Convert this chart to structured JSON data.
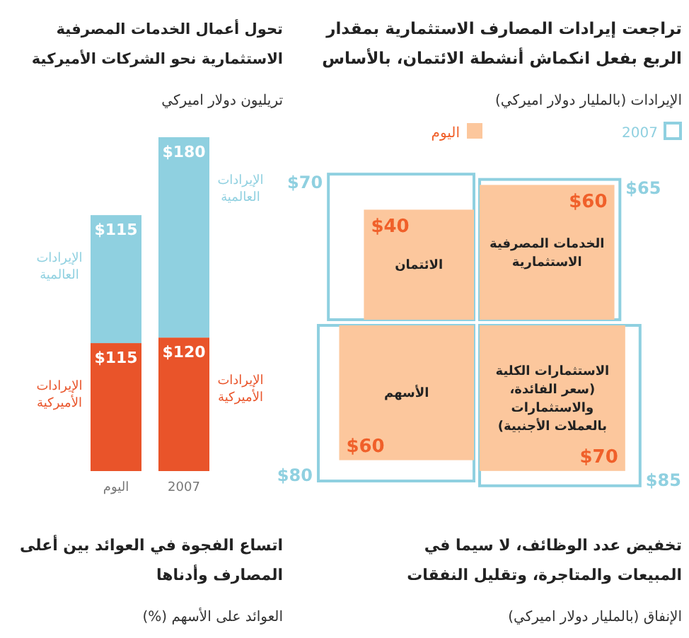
{
  "chart_data": [
    {
      "type": "other",
      "title": "تراجعت إيرادات المصارف الاستثمارية بمقدار\nالربع بفعل انكماش أنشطة الائتمان، بالأساس",
      "subtitle": "الإيرادات (بالمليار دولار اميركي)",
      "categories": [
        "الائتمان",
        "الخدمات المصرفية الاستثمارية",
        "الأسهم",
        "الاستثمارات الكلية (سعر الفائدة، والاستثمارات بالعملات الأجنبية)"
      ],
      "legend": "top",
      "series": [
        {
          "name": "2007",
          "color": "#8fd0e0",
          "values": [
            70,
            65,
            80,
            85
          ],
          "value_labels": [
            "$70",
            "$65",
            "$80",
            "$85"
          ]
        },
        {
          "name": "اليوم",
          "color": "#fcc79d",
          "values": [
            40,
            60,
            60,
            70
          ],
          "value_labels": [
            "$40",
            "$60",
            "$60",
            "$70"
          ]
        }
      ]
    },
    {
      "type": "bar",
      "title": "تحول أعمال الخدمات المصرفية\nالاستثمارية نحو الشركات الأميركية",
      "subtitle": "تريليون دولار اميركي",
      "categories": [
        "اليوم",
        "2007"
      ],
      "stacked": true,
      "series": [
        {
          "name": "الإيرادات الأميركية",
          "color": "#e9542a",
          "values": [
            115,
            120
          ],
          "value_labels": [
            "$115",
            "$120"
          ]
        },
        {
          "name": "الإيرادات العالمية",
          "color": "#8fd0e0",
          "values": [
            115,
            180
          ],
          "value_labels": [
            "$115",
            "$180"
          ]
        }
      ]
    },
    {
      "type": "other",
      "title": "تخفيض عدد الوظائف، لا سيما في\nالمبيعات والمتاجرة، وتقليل النفقات",
      "subtitle": "الإنفاق (بالمليار دولار اميركي)"
    },
    {
      "type": "other",
      "title": "اتساع الفجوة في العوائد بين أعلى\nالمصارف وأدناها",
      "subtitle": "العوائد على الأسهم (%)"
    }
  ]
}
